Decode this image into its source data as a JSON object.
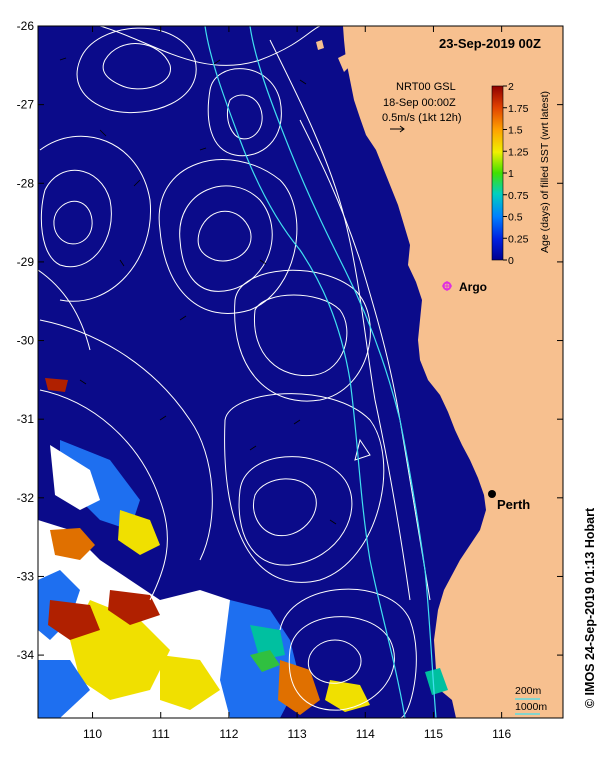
{
  "map": {
    "title": "23-Sep-2019 00Z",
    "lon_ticks": [
      "110",
      "111",
      "112",
      "113",
      "114",
      "115",
      "116"
    ],
    "lat_ticks": [
      "-26",
      "-27",
      "-28",
      "-29",
      "-30",
      "-31",
      "-32",
      "-33",
      "-34"
    ],
    "lon_range": [
      109.2,
      116.9
    ],
    "lat_range": [
      -34.8,
      -26.0
    ],
    "ocean_color": "#0b0b8a",
    "land_color": "#f7c08f",
    "contour_color": "#ffffff",
    "isobath_color": "#40e0f0"
  },
  "legend": {
    "source_line1": "NRT00 GSL",
    "source_line2": "18-Sep 00:00Z",
    "vector_scale": "0.5m/s (1kt 12h)",
    "colorbar_label": "Age (days) of filled SST (wrt latest)",
    "colorbar_ticks": [
      "2",
      "1.75",
      "1.5",
      "1.25",
      "1",
      "0.75",
      "0.5",
      "0.25",
      "0"
    ],
    "colorbar_range": [
      0,
      2
    ],
    "isobath_200": "200m",
    "isobath_1000": "1000m"
  },
  "places": {
    "argo": "Argo",
    "argo_lonlat": [
      115.2,
      -29.33
    ],
    "perth": "Perth",
    "perth_lonlat": [
      115.86,
      -31.95
    ]
  },
  "footer": {
    "copyright": "© IMOS 24-Sep-2019 01:13 Hobart"
  }
}
